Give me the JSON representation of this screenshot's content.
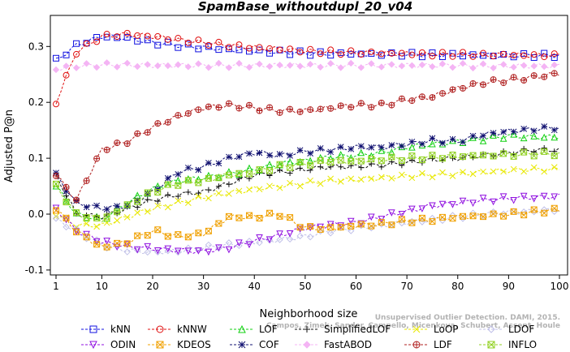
{
  "chart_data": {
    "type": "line",
    "title": "SpamBase_withoutdupl_20_v04",
    "xlabel": "Neighborhood size",
    "ylabel": "Adjusted P@n",
    "xlim": [
      1,
      100
    ],
    "ylim": [
      -0.1,
      0.34
    ],
    "xticks": [
      "1",
      "10",
      "20",
      "30",
      "40",
      "50",
      "60",
      "70",
      "80",
      "90",
      "100"
    ],
    "yticks": [
      "-0.1",
      "0.0",
      "0.1",
      "0.2",
      "0.3"
    ],
    "grid": false,
    "legend_position": "bottom",
    "watermark": "Unsupervised Outlier Detection. DAMI, 2015. Campos, Zimek, Sander, Campello, Micenkova, Schubert, Assent, Houle",
    "x": [
      1,
      5,
      10,
      15,
      20,
      25,
      30,
      35,
      40,
      45,
      50,
      55,
      60,
      65,
      70,
      75,
      80,
      85,
      90,
      95,
      100
    ],
    "series": [
      {
        "name": "kNN",
        "color": "#1010e0",
        "marker": "square",
        "values": [
          0.275,
          0.302,
          0.318,
          0.315,
          0.307,
          0.302,
          0.298,
          0.295,
          0.292,
          0.29,
          0.288,
          0.287,
          0.287,
          0.286,
          0.286,
          0.285,
          0.285,
          0.284,
          0.284,
          0.284,
          0.284
        ]
      },
      {
        "name": "kNNW",
        "color": "#e01010",
        "marker": "circle",
        "values": [
          0.2,
          0.29,
          0.318,
          0.322,
          0.318,
          0.312,
          0.307,
          0.302,
          0.298,
          0.295,
          0.292,
          0.29,
          0.289,
          0.288,
          0.287,
          0.286,
          0.286,
          0.285,
          0.285,
          0.284,
          0.284
        ]
      },
      {
        "name": "LOF",
        "color": "#10d010",
        "marker": "triangle",
        "values": [
          0.05,
          0.0,
          -0.01,
          0.02,
          0.045,
          0.06,
          0.065,
          0.072,
          0.08,
          0.09,
          0.095,
          0.102,
          0.105,
          0.11,
          0.12,
          0.125,
          0.13,
          0.135,
          0.14,
          0.138,
          0.138
        ]
      },
      {
        "name": "SimplifiedLOF",
        "color": "#111111",
        "marker": "plus",
        "values": [
          0.07,
          0.0,
          -0.005,
          0.01,
          0.025,
          0.035,
          0.04,
          0.055,
          0.07,
          0.075,
          0.08,
          0.085,
          0.085,
          0.088,
          0.092,
          0.097,
          0.1,
          0.105,
          0.11,
          0.115,
          0.115
        ]
      },
      {
        "name": "LoOP",
        "color": "#e8e800",
        "marker": "x",
        "values": [
          0.0,
          -0.02,
          -0.02,
          -0.005,
          0.01,
          0.02,
          0.03,
          0.038,
          0.045,
          0.05,
          0.055,
          0.06,
          0.062,
          0.065,
          0.068,
          0.07,
          0.072,
          0.075,
          0.078,
          0.08,
          0.08
        ]
      },
      {
        "name": "LDOF",
        "color": "#c0c0e8",
        "marker": "diamond",
        "values": [
          -0.01,
          -0.03,
          -0.055,
          -0.065,
          -0.068,
          -0.066,
          -0.06,
          -0.055,
          -0.05,
          -0.046,
          -0.04,
          -0.03,
          -0.025,
          -0.02,
          -0.015,
          -0.01,
          -0.005,
          0.0,
          0.003,
          0.005,
          0.008
        ]
      },
      {
        "name": "ODIN",
        "color": "#9010e0",
        "marker": "triangle-down",
        "values": [
          0.01,
          -0.03,
          -0.05,
          -0.058,
          -0.062,
          -0.065,
          -0.067,
          -0.06,
          -0.048,
          -0.038,
          -0.025,
          -0.02,
          -0.015,
          -0.005,
          0.005,
          0.015,
          0.02,
          0.025,
          0.028,
          0.03,
          0.032
        ]
      },
      {
        "name": "KDEOS",
        "color": "#f0a000",
        "marker": "square-x",
        "values": [
          0.01,
          -0.03,
          -0.06,
          -0.05,
          -0.03,
          -0.04,
          -0.035,
          -0.005,
          -0.005,
          0.0,
          -0.025,
          -0.025,
          -0.02,
          -0.018,
          -0.012,
          -0.01,
          -0.005,
          -0.003,
          0.0,
          0.004,
          0.008
        ]
      },
      {
        "name": "COF",
        "color": "#101070",
        "marker": "asterisk",
        "values": [
          0.07,
          0.02,
          0.01,
          0.015,
          0.04,
          0.075,
          0.085,
          0.1,
          0.11,
          0.105,
          0.112,
          0.115,
          0.12,
          0.12,
          0.125,
          0.132,
          0.13,
          0.142,
          0.148,
          0.152,
          0.155
        ]
      },
      {
        "name": "FastABOD",
        "color": "#f4b4f4",
        "marker": "diamond-filled",
        "values": [
          0.26,
          0.265,
          0.267,
          0.267,
          0.266,
          0.266,
          0.266,
          0.266,
          0.266,
          0.266,
          0.266,
          0.266,
          0.266,
          0.266,
          0.266,
          0.266,
          0.266,
          0.265,
          0.265,
          0.265,
          0.265
        ]
      },
      {
        "name": "LDF",
        "color": "#b02020",
        "marker": "circle-plus",
        "values": [
          0.07,
          0.025,
          0.115,
          0.13,
          0.155,
          0.175,
          0.19,
          0.195,
          0.19,
          0.185,
          0.185,
          0.19,
          0.195,
          0.195,
          0.205,
          0.21,
          0.225,
          0.235,
          0.24,
          0.245,
          0.252
        ]
      },
      {
        "name": "INFLO",
        "color": "#90d020",
        "marker": "square-x",
        "values": [
          0.05,
          0.0,
          -0.01,
          0.015,
          0.04,
          0.055,
          0.06,
          0.07,
          0.075,
          0.085,
          0.09,
          0.095,
          0.095,
          0.098,
          0.1,
          0.102,
          0.104,
          0.105,
          0.106,
          0.108,
          0.108
        ]
      }
    ]
  }
}
